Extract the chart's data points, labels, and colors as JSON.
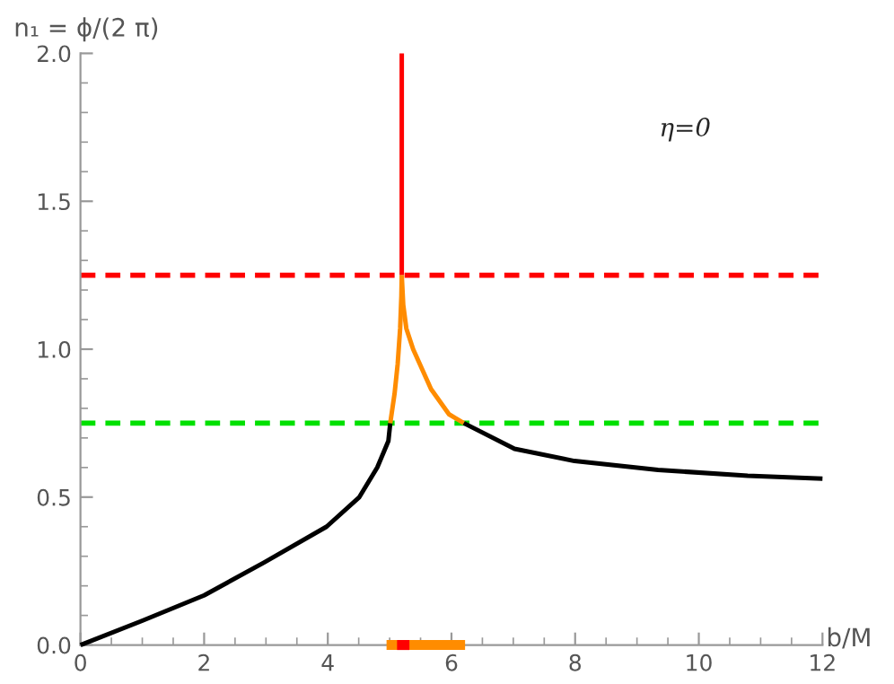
{
  "chart_data": {
    "type": "line",
    "ylabel": "n₁ = ϕ/(2 π)",
    "xlabel": "b/M",
    "annotations": [
      "η=0"
    ],
    "xlim": [
      0,
      12
    ],
    "ylim": [
      0,
      2
    ],
    "xticks": [
      0,
      2,
      4,
      6,
      8,
      10,
      12
    ],
    "yticks": [
      {
        "value": 0,
        "label": "0.0"
      },
      {
        "value": 0.5,
        "label": "0.5"
      },
      {
        "value": 1,
        "label": "1.0"
      },
      {
        "value": 1.5,
        "label": "1.5"
      },
      {
        "value": 2,
        "label": "2.0"
      }
    ],
    "grid": false,
    "legend": false,
    "line_style": "solid",
    "series": [
      {
        "color": "#000000",
        "x": [
          0,
          1,
          2,
          2.97,
          3.98,
          4.51,
          4.8,
          4.98,
          5.01
        ],
        "values": [
          0,
          0.082,
          0.168,
          0.279,
          0.4,
          0.5,
          0.6,
          0.69,
          0.75
        ]
      },
      {
        "color": "#ff8c00",
        "x": [
          5.01,
          5.08,
          5.13,
          5.17,
          5.19,
          5.196
        ],
        "values": [
          0.75,
          0.85,
          0.95,
          1.07,
          1.18,
          1.25
        ]
      },
      {
        "color": "#ff0000",
        "x": [
          5.196,
          5.196
        ],
        "values": [
          1.25,
          2.0
        ]
      },
      {
        "color": "#ff8c00",
        "x": [
          5.196,
          5.22,
          5.27,
          5.38,
          5.67,
          5.96,
          6.2
        ],
        "values": [
          1.25,
          1.15,
          1.07,
          1.0,
          0.865,
          0.78,
          0.75
        ]
      },
      {
        "color": "#000000",
        "x": [
          6.2,
          7.02,
          7.99,
          9.34,
          10.79,
          12
        ],
        "values": [
          0.75,
          0.663,
          0.622,
          0.592,
          0.572,
          0.562
        ]
      },
      {
        "color": "#ff8c00",
        "x": [
          4.95,
          6.22
        ],
        "values": [
          0,
          0
        ]
      },
      {
        "color": "#ff0000",
        "x": [
          5.12,
          5.32
        ],
        "values": [
          0,
          0
        ]
      }
    ],
    "ref_lines": [
      {
        "axis": "y",
        "value": 1.25,
        "color": "#ff0000",
        "line_style": "dashed"
      },
      {
        "axis": "y",
        "value": 0.75,
        "color": "#00e000",
        "line_style": "dashed"
      }
    ]
  }
}
